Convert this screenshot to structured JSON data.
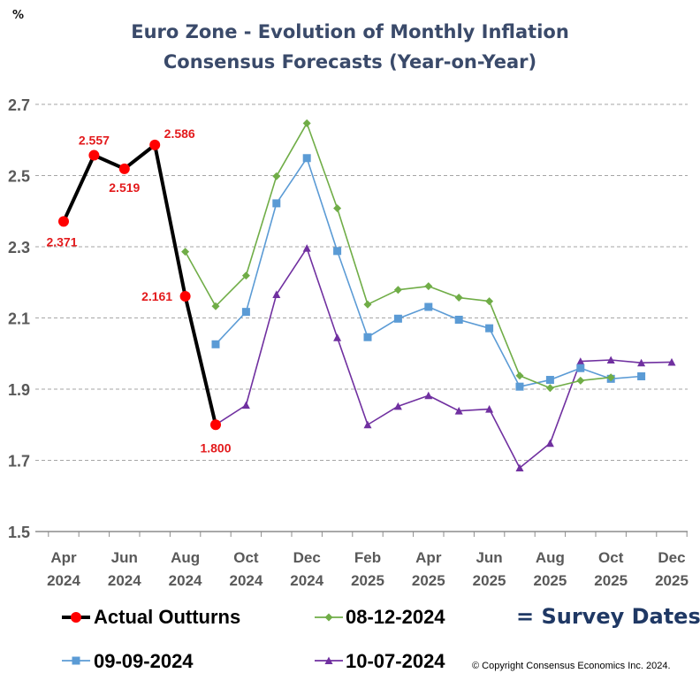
{
  "unit_label": "%",
  "title_line1": "Euro Zone - Evolution of Monthly Inflation",
  "title_line2": "Consensus Forecasts (Year-on-Year)",
  "survey_dates_note": "= Survey Dates",
  "copyright": "© Copyright Consensus Economics Inc. 2024.",
  "chart_data": {
    "type": "line",
    "x": [
      "Apr 2024",
      "May 2024",
      "Jun 2024",
      "Jul 2024",
      "Aug 2024",
      "Sep 2024",
      "Oct 2024",
      "Nov 2024",
      "Dec 2024",
      "Jan 2025",
      "Feb 2025",
      "Mar 2025",
      "Apr 2025",
      "May 2025",
      "Jun 2025",
      "Jul 2025",
      "Aug 2025",
      "Sep 2025",
      "Oct 2025",
      "Nov 2025",
      "Dec 2025"
    ],
    "x_tick_labels": [
      {
        "month": "Apr",
        "year": "2024"
      },
      {
        "month": "Jun",
        "year": "2024"
      },
      {
        "month": "Aug",
        "year": "2024"
      },
      {
        "month": "Oct",
        "year": "2024"
      },
      {
        "month": "Dec",
        "year": "2024"
      },
      {
        "month": "Feb",
        "year": "2025"
      },
      {
        "month": "Apr",
        "year": "2025"
      },
      {
        "month": "Jun",
        "year": "2025"
      },
      {
        "month": "Aug",
        "year": "2025"
      },
      {
        "month": "Oct",
        "year": "2025"
      },
      {
        "month": "Dec",
        "year": "2025"
      }
    ],
    "y_ticks": [
      "1.5",
      "1.7",
      "1.9",
      "2.1",
      "2.3",
      "2.5",
      "2.7"
    ],
    "ylim": [
      1.5,
      2.7
    ],
    "grid": true,
    "legend_position": "bottom",
    "series": [
      {
        "name": "Actual Outturns",
        "color": "#000000",
        "marker": "circle",
        "marker_color": "#ff0000",
        "values": [
          2.371,
          2.557,
          2.519,
          2.586,
          2.161,
          1.8,
          null,
          null,
          null,
          null,
          null,
          null,
          null,
          null,
          null,
          null,
          null,
          null,
          null,
          null,
          null
        ],
        "data_labels": [
          "2.371",
          "2.557",
          "2.519",
          "2.586",
          "2.161",
          "1.800"
        ]
      },
      {
        "name": "08-12-2024",
        "color": "#70ad47",
        "marker": "diamond",
        "values": [
          null,
          null,
          null,
          null,
          2.286,
          2.133,
          2.219,
          2.498,
          2.647,
          2.408,
          2.138,
          2.179,
          2.189,
          2.157,
          2.147,
          1.938,
          1.903,
          1.924,
          1.933,
          null,
          null
        ]
      },
      {
        "name": "09-09-2024",
        "color": "#5b9bd5",
        "marker": "square",
        "values": [
          null,
          null,
          null,
          null,
          null,
          2.026,
          2.117,
          2.422,
          2.549,
          2.288,
          2.046,
          2.098,
          2.131,
          2.095,
          2.071,
          1.907,
          1.926,
          1.959,
          1.929,
          1.936,
          null
        ]
      },
      {
        "name": "10-07-2024",
        "color": "#7030a0",
        "marker": "triangle",
        "values": [
          null,
          null,
          null,
          null,
          null,
          1.8,
          1.855,
          2.166,
          2.296,
          2.045,
          1.8,
          1.852,
          1.882,
          1.839,
          1.844,
          1.679,
          1.748,
          1.978,
          1.982,
          1.974,
          1.976
        ]
      }
    ]
  }
}
